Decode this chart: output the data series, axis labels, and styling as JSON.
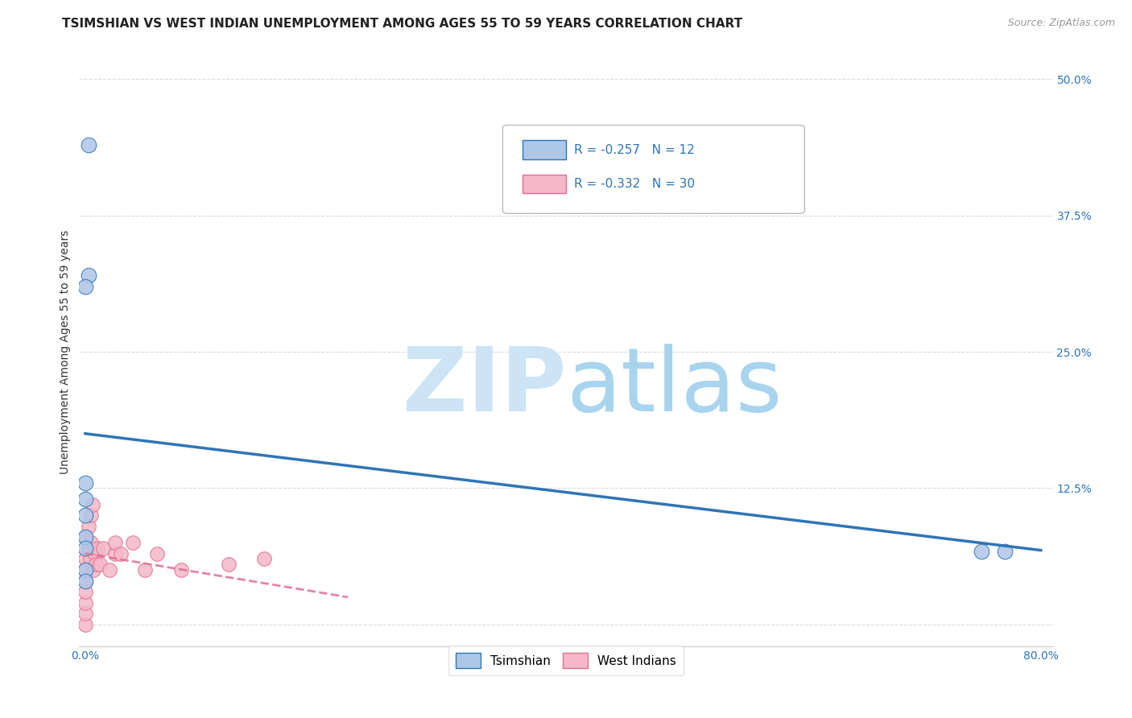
{
  "title": "TSIMSHIAN VS WEST INDIAN UNEMPLOYMENT AMONG AGES 55 TO 59 YEARS CORRELATION CHART",
  "source": "Source: ZipAtlas.com",
  "ylabel": "Unemployment Among Ages 55 to 59 years",
  "xlim": [
    -0.005,
    0.81
  ],
  "ylim": [
    -0.02,
    0.52
  ],
  "xticks": [
    0.0,
    0.1,
    0.2,
    0.3,
    0.4,
    0.5,
    0.6,
    0.7,
    0.8
  ],
  "xticklabels": [
    "0.0%",
    "",
    "",
    "",
    "",
    "",
    "",
    "",
    "80.0%"
  ],
  "yticks": [
    0.0,
    0.125,
    0.25,
    0.375,
    0.5
  ],
  "yticklabels_right": [
    "",
    "12.5%",
    "25.0%",
    "37.5%",
    "50.0%"
  ],
  "tsimshian_x": [
    0.0,
    0.0,
    0.0,
    0.003,
    0.003,
    0.75,
    0.77,
    0.0,
    0.0,
    0.0,
    0.0,
    0.0
  ],
  "tsimshian_y": [
    0.13,
    0.115,
    0.1,
    0.44,
    0.32,
    0.067,
    0.067,
    0.08,
    0.07,
    0.05,
    0.31,
    0.04
  ],
  "west_indian_x": [
    0.0,
    0.0,
    0.0,
    0.0,
    0.0,
    0.0,
    0.0,
    0.0,
    0.003,
    0.003,
    0.004,
    0.005,
    0.005,
    0.006,
    0.007,
    0.008,
    0.009,
    0.01,
    0.012,
    0.015,
    0.02,
    0.025,
    0.025,
    0.03,
    0.04,
    0.05,
    0.06,
    0.08,
    0.12,
    0.15
  ],
  "west_indian_y": [
    0.0,
    0.01,
    0.02,
    0.03,
    0.04,
    0.05,
    0.06,
    0.08,
    0.07,
    0.09,
    0.06,
    0.075,
    0.1,
    0.11,
    0.05,
    0.065,
    0.055,
    0.07,
    0.055,
    0.07,
    0.05,
    0.065,
    0.075,
    0.065,
    0.075,
    0.05,
    0.065,
    0.05,
    0.055,
    0.06
  ],
  "tsimshian_R": -0.257,
  "tsimshian_N": 12,
  "west_indian_R": -0.332,
  "west_indian_N": 30,
  "tsimshian_color": "#aec6e8",
  "tsimshian_line_color": "#2e75b6",
  "west_indian_color": "#f4b8c8",
  "west_indian_line_color": "#e07090",
  "background_color": "#ffffff",
  "grid_color": "#cccccc",
  "title_fontsize": 11,
  "axis_label_fontsize": 10,
  "tick_fontsize": 10,
  "legend_fontsize": 11,
  "source_fontsize": 9,
  "tsimshian_line_x0": 0.0,
  "tsimshian_line_x1": 0.8,
  "tsimshian_line_y0": 0.175,
  "tsimshian_line_y1": 0.068,
  "west_indian_line_x0": 0.0,
  "west_indian_line_x1": 0.22,
  "west_indian_line_y0": 0.065,
  "west_indian_line_y1": 0.025
}
